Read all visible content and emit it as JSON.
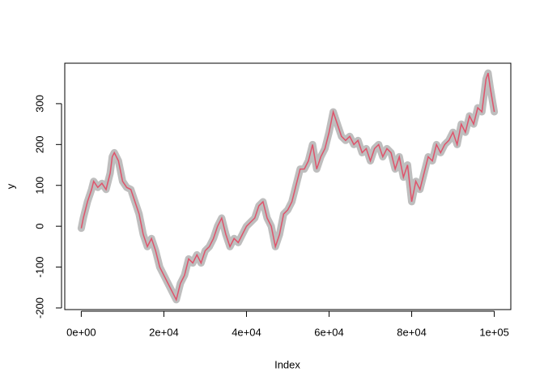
{
  "chart_data": {
    "type": "line",
    "x_label": "Index",
    "y_label": "y",
    "x": [
      0,
      500,
      1500,
      2500,
      3000,
      4000,
      5000,
      6000,
      7000,
      7500,
      8000,
      9000,
      10000,
      11000,
      12000,
      13000,
      14000,
      15000,
      16000,
      17000,
      18000,
      19000,
      20000,
      21000,
      22000,
      23000,
      24000,
      25000,
      26000,
      27000,
      28000,
      29000,
      30000,
      31000,
      32000,
      33000,
      34000,
      35000,
      36000,
      37000,
      38000,
      39000,
      40000,
      41000,
      42000,
      43000,
      44000,
      45000,
      46000,
      47000,
      48000,
      49000,
      50000,
      51000,
      52000,
      53000,
      54000,
      55000,
      56000,
      57000,
      58000,
      59000,
      60000,
      61000,
      62000,
      63000,
      64000,
      65000,
      66000,
      67000,
      68000,
      69000,
      70000,
      71000,
      72000,
      73000,
      74000,
      75000,
      76000,
      77000,
      78000,
      79000,
      80000,
      81000,
      82000,
      83000,
      84000,
      85000,
      86000,
      87000,
      88000,
      89000,
      90000,
      91000,
      92000,
      93000,
      94000,
      95000,
      96000,
      97000,
      98000,
      98500,
      99000,
      100000
    ],
    "values": [
      -5,
      20,
      60,
      90,
      110,
      95,
      105,
      90,
      130,
      170,
      180,
      160,
      110,
      95,
      90,
      60,
      30,
      -20,
      -50,
      -30,
      -60,
      -100,
      -120,
      -140,
      -160,
      -180,
      -140,
      -120,
      -80,
      -90,
      -70,
      -90,
      -60,
      -50,
      -30,
      0,
      20,
      -20,
      -50,
      -30,
      -40,
      -20,
      0,
      10,
      20,
      50,
      60,
      20,
      0,
      -50,
      -20,
      30,
      40,
      60,
      100,
      140,
      140,
      160,
      200,
      140,
      170,
      190,
      230,
      280,
      250,
      220,
      210,
      220,
      200,
      210,
      180,
      190,
      160,
      190,
      200,
      170,
      190,
      180,
      140,
      170,
      120,
      150,
      60,
      110,
      90,
      130,
      170,
      160,
      200,
      180,
      200,
      210,
      230,
      200,
      250,
      230,
      270,
      250,
      290,
      280,
      360,
      375,
      340,
      280
    ],
    "point_color": "#bebebe",
    "color": "#df536b",
    "xlim": [
      -3998,
      104000
    ],
    "xticks": [
      {
        "value": 0,
        "label": "0e+00"
      },
      {
        "value": 20000,
        "label": "2e+04"
      },
      {
        "value": 40000,
        "label": "4e+04"
      },
      {
        "value": 60000,
        "label": "6e+04"
      },
      {
        "value": 80000,
        "label": "8e+04"
      },
      {
        "value": 100000,
        "label": "1e+05"
      }
    ],
    "ylim": [
      -204,
      399
    ],
    "yticks": [
      -200,
      -100,
      0,
      100,
      200,
      300
    ]
  }
}
